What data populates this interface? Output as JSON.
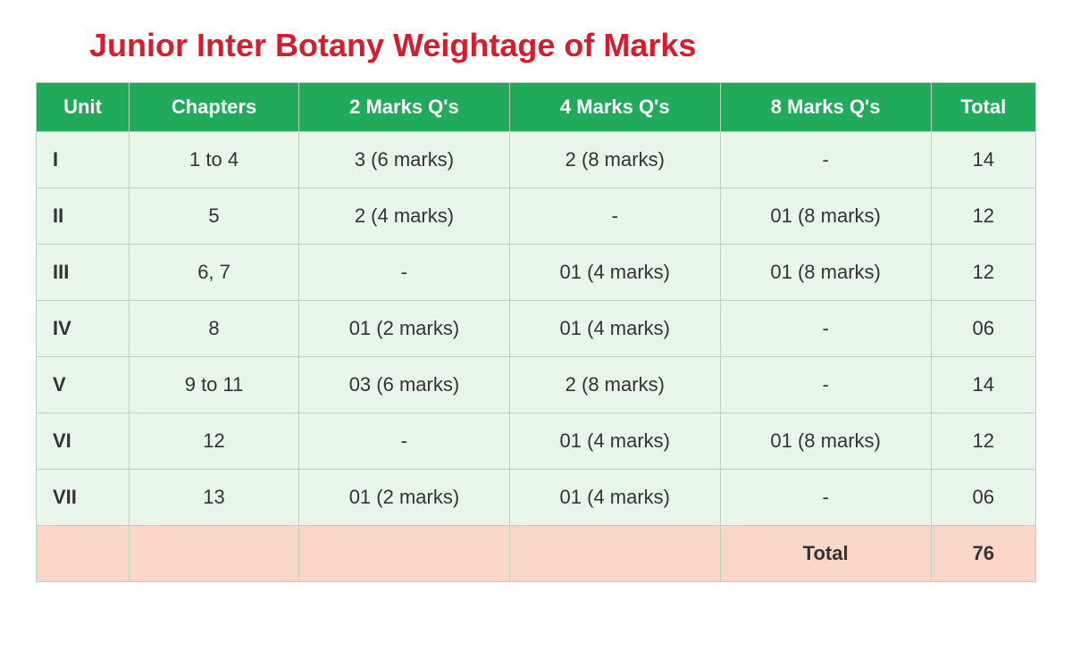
{
  "title": "Junior Inter Botany Weightage of Marks",
  "table": {
    "columns": [
      "Unit",
      "Chapters",
      "2 Marks Q's",
      "4 Marks Q's",
      "8 Marks Q's",
      "Total"
    ],
    "rows": [
      {
        "unit": "I",
        "chapters": "1 to 4",
        "q2": "3 (6 marks)",
        "q4": "2 (8 marks)",
        "q8": "-",
        "total": "14"
      },
      {
        "unit": "II",
        "chapters": "5",
        "q2": "2 (4 marks)",
        "q4": "-",
        "q8": "01 (8 marks)",
        "total": "12"
      },
      {
        "unit": "III",
        "chapters": "6, 7",
        "q2": "-",
        "q4": "01 (4 marks)",
        "q8": "01 (8 marks)",
        "total": "12"
      },
      {
        "unit": "IV",
        "chapters": "8",
        "q2": "01 (2 marks)",
        "q4": "01 (4 marks)",
        "q8": "-",
        "total": "06"
      },
      {
        "unit": "V",
        "chapters": "9 to 11",
        "q2": "03 (6 marks)",
        "q4": "2 (8 marks)",
        "q8": "-",
        "total": "14"
      },
      {
        "unit": "VI",
        "chapters": "12",
        "q2": "-",
        "q4": "01 (4 marks)",
        "q8": "01 (8 marks)",
        "total": "12"
      },
      {
        "unit": "VII",
        "chapters": "13",
        "q2": "01 (2 marks)",
        "q4": "01 (4 marks)",
        "q8": "-",
        "total": "06"
      }
    ],
    "footer": {
      "label": "Total",
      "value": "76"
    },
    "styling": {
      "header_bg": "#21a95c",
      "header_text": "#ffffff",
      "body_bg": "#e8f5e9",
      "footer_bg": "#f9d6c8",
      "title_color": "#d41e2e",
      "border_color": "#b8d4bd",
      "title_fontsize": 36,
      "header_fontsize": 22,
      "cell_fontsize": 22
    }
  }
}
